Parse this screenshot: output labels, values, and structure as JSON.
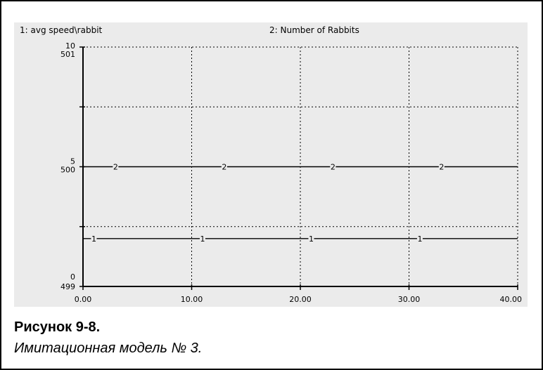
{
  "chart_data": {
    "type": "line",
    "x_ticks": [
      "0.00",
      "10.00",
      "20.00",
      "30.00",
      "40.00"
    ],
    "xlim": [
      0,
      40
    ],
    "grid": true,
    "axes": [
      {
        "series": "1",
        "ylim": [
          0,
          10
        ],
        "tick_labels": {
          "top": "10",
          "mid": "5",
          "bottom": "0"
        }
      },
      {
        "series": "2",
        "ylim": [
          499,
          501
        ],
        "tick_labels": {
          "top": "501",
          "mid": "500",
          "bottom": "499"
        }
      }
    ],
    "series": [
      {
        "name": "1: avg  speed\\rabbit",
        "marker": "1",
        "x": [
          0,
          40
        ],
        "y": [
          2,
          2
        ],
        "marker_x": [
          1,
          11,
          21,
          31
        ]
      },
      {
        "name": "2: Number of Rabbits",
        "marker": "2",
        "x": [
          0,
          40
        ],
        "y": [
          500,
          500
        ],
        "marker_x": [
          3,
          13,
          23,
          33
        ]
      }
    ]
  },
  "caption": {
    "title": "Рисунок 9-8.",
    "subtitle": "Имитационная модель № 3."
  }
}
